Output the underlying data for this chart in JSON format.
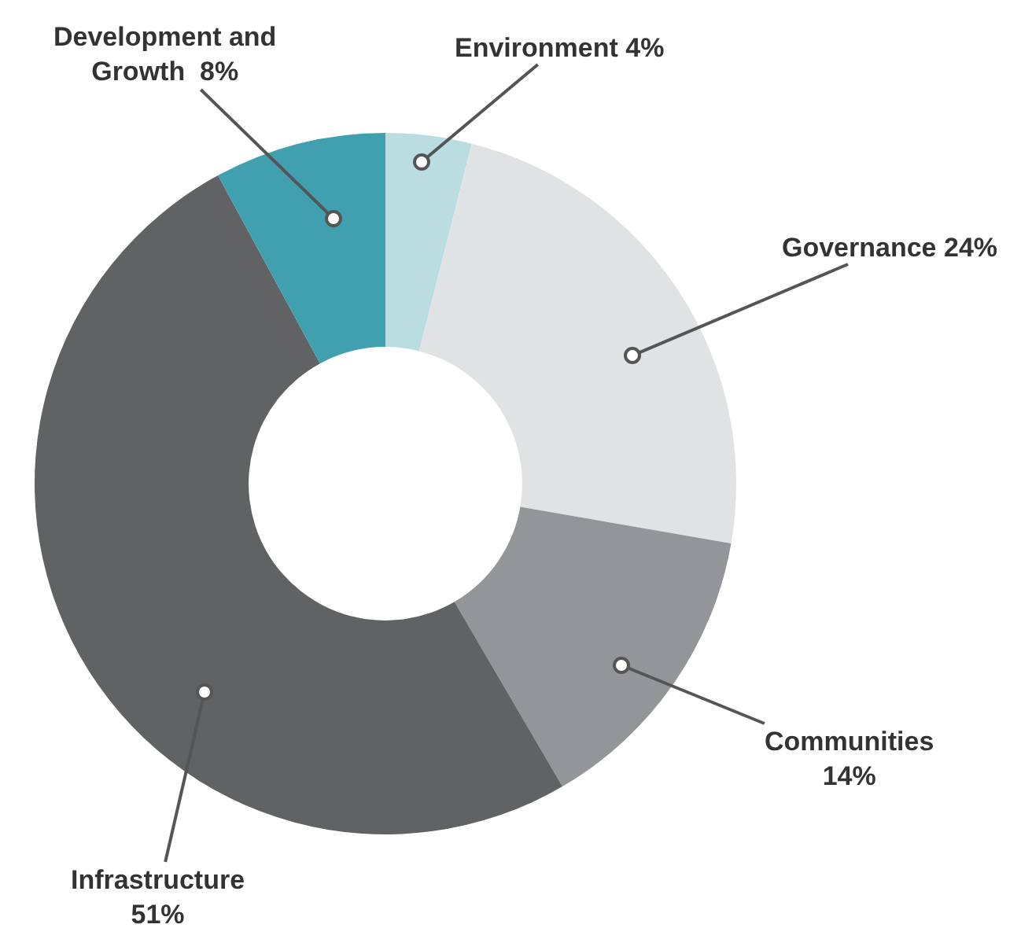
{
  "chart_data": {
    "type": "donut",
    "categories": [
      "Environment",
      "Governance",
      "Communities",
      "Infrastructure",
      "Development and Growth"
    ],
    "values": [
      4,
      24,
      14,
      51,
      8
    ],
    "value_labels": [
      "4%",
      "24%",
      "14%",
      "51%",
      "8%"
    ],
    "colors": [
      "#b9dde0",
      "#e1e2e4",
      "#939598",
      "#616264",
      "#40a0b0"
    ]
  }
}
